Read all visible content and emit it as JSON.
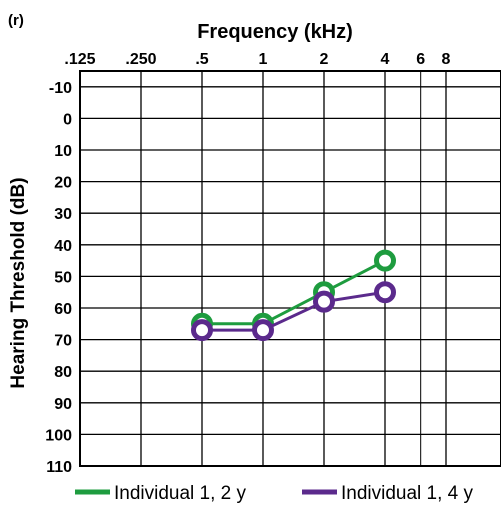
{
  "panel_label": "(r)",
  "chart_data": {
    "type": "line",
    "xlabel": "Frequency (kHz)",
    "ylabel": "Hearing Threshold (dB)",
    "x_scale": "log2",
    "x_tick_labels": [
      ".125",
      ".250",
      ".5",
      "1",
      "2",
      "4",
      "6",
      "8"
    ],
    "x_tick_values": [
      0.125,
      0.25,
      0.5,
      1,
      2,
      4,
      6,
      8
    ],
    "y_tick_labels": [
      "-10",
      "0",
      "10",
      "20",
      "30",
      "40",
      "50",
      "60",
      "70",
      "80",
      "90",
      "100",
      "110"
    ],
    "y_tick_values": [
      -10,
      0,
      10,
      20,
      30,
      40,
      50,
      60,
      70,
      80,
      90,
      100,
      110
    ],
    "ylim": [
      -15,
      110
    ],
    "y_inverted": true,
    "grid": true,
    "legend_position": "bottom",
    "series": [
      {
        "name": "Individual 1, 2 y",
        "color": "#1e9c3f",
        "marker": "circle",
        "x": [
          0.5,
          1,
          2,
          4
        ],
        "y": [
          65,
          65,
          55,
          45
        ]
      },
      {
        "name": "Individual 1, 4 y",
        "color": "#5b2a8c",
        "marker": "circle",
        "x": [
          0.5,
          1,
          2,
          4
        ],
        "y": [
          67,
          67,
          58,
          55
        ]
      }
    ]
  }
}
